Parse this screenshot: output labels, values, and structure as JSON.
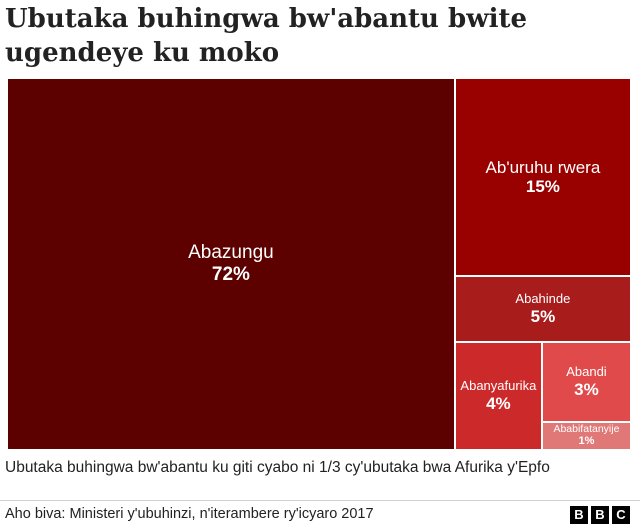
{
  "title": "Ubutaka buhingwa bw'abantu bwite ugendeye ku moko",
  "chart_data": {
    "type": "treemap",
    "title": "Ubutaka buhingwa bw'abantu bwite ugendeye ku moko",
    "items": [
      {
        "label": "Abazungu",
        "value": 72,
        "pct_label": "72%",
        "color": "#5c0000"
      },
      {
        "label": "Ab'uruhu rwera",
        "value": 15,
        "pct_label": "15%",
        "color": "#990000"
      },
      {
        "label": "Abahinde",
        "value": 5,
        "pct_label": "5%",
        "color": "#a81c1c"
      },
      {
        "label": "Abanyafurika",
        "value": 4,
        "pct_label": "4%",
        "color": "#cc2a2a"
      },
      {
        "label": "Abandi",
        "value": 3,
        "pct_label": "3%",
        "color": "#e04a4a"
      },
      {
        "label": "Ababifatanyije",
        "value": 1,
        "pct_label": "1%",
        "color": "#e07878"
      }
    ]
  },
  "note": "Ubutaka buhingwa bw'abantu ku giti cyabo ni 1/3 cy'ubutaka bwa Afurika y'Epfo",
  "source": "Aho biva: Ministeri y'ubuhinzi, n'iterambere ry'icyaro 2017",
  "logo": [
    "B",
    "B",
    "C"
  ]
}
